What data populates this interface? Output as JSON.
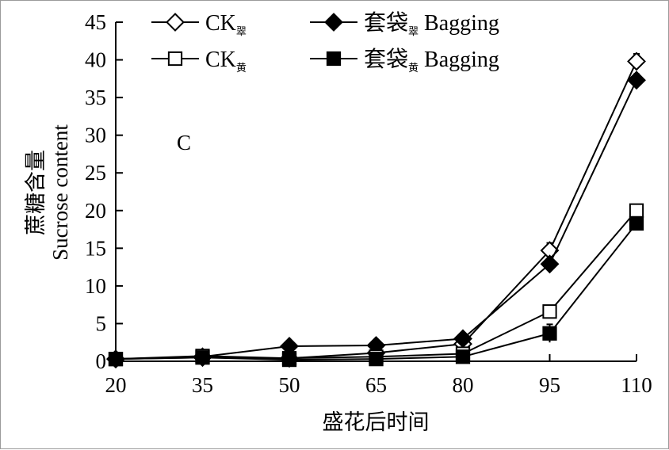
{
  "chart_data": {
    "type": "line",
    "panel_label": "C",
    "xlabel": "盛花后时间",
    "ylabel_cn": "蔗糖含量",
    "ylabel_en": "Sucrose content",
    "x": [
      20,
      35,
      50,
      65,
      80,
      95,
      110
    ],
    "xlim": [
      20,
      110
    ],
    "ylim": [
      0,
      45
    ],
    "yticks": [
      0,
      5,
      10,
      15,
      20,
      25,
      30,
      35,
      40,
      45
    ],
    "grid": false,
    "legend_placement": "top",
    "series": [
      {
        "key": "ck_cui",
        "name_main": "CK",
        "name_sub": "翠",
        "marker": "diamond-open",
        "values": [
          0.3,
          0.5,
          0.4,
          1.1,
          2.3,
          14.7,
          39.8
        ],
        "errors": [
          0.1,
          0.1,
          0.1,
          0.2,
          0.3,
          1.0,
          1.0
        ]
      },
      {
        "key": "bag_cui",
        "name_main": "套袋",
        "name_sub": "翠",
        "name_tail": " Bagging",
        "marker": "diamond-filled",
        "values": [
          0.3,
          0.6,
          2.0,
          2.1,
          3.0,
          12.9,
          37.3
        ],
        "errors": [
          0.1,
          0.1,
          0.2,
          0.2,
          0.3,
          0.4,
          0.8
        ]
      },
      {
        "key": "ck_huang",
        "name_main": "CK",
        "name_sub": "黄",
        "marker": "square-open",
        "values": [
          0.3,
          0.7,
          0.4,
          0.6,
          1.0,
          6.6,
          20.0
        ],
        "errors": [
          0.1,
          0.1,
          0.1,
          0.1,
          0.2,
          0.8,
          0.8
        ]
      },
      {
        "key": "bag_huang",
        "name_main": "套袋",
        "name_sub": "黄",
        "name_tail": " Bagging",
        "marker": "square-filled",
        "values": [
          0.3,
          0.5,
          0.2,
          0.3,
          0.6,
          3.7,
          18.3
        ],
        "errors": [
          0.1,
          0.1,
          0.1,
          0.1,
          0.1,
          1.2,
          0.5
        ]
      }
    ]
  }
}
